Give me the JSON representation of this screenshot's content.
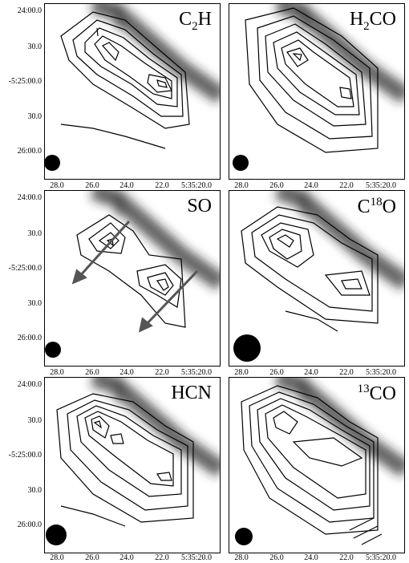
{
  "panels": [
    {
      "id": "c2h",
      "mol_main": "C",
      "mol_sub": "2",
      "mol_after": "H",
      "mol_sup": "",
      "mol_pre": "",
      "beam": "small"
    },
    {
      "id": "h2co",
      "mol_main": "H",
      "mol_sub": "2",
      "mol_after": "CO",
      "mol_sup": "",
      "mol_pre": "",
      "beam": "small"
    },
    {
      "id": "so",
      "mol_main": "SO",
      "mol_sub": "",
      "mol_after": "",
      "mol_sup": "",
      "mol_pre": "",
      "beam": "small"
    },
    {
      "id": "c18o",
      "mol_main": "C",
      "mol_sub": "",
      "mol_after": "O",
      "mol_sup": "18",
      "mol_pre": "",
      "beam": "large"
    },
    {
      "id": "hcn",
      "mol_main": "HCN",
      "mol_sub": "",
      "mol_after": "",
      "mol_sup": "",
      "mol_pre": "",
      "beam": "medium"
    },
    {
      "id": "13co",
      "mol_main": "CO",
      "mol_sub": "",
      "mol_after": "",
      "mol_sup": "",
      "mol_pre": "13",
      "beam": "small"
    }
  ],
  "y_ticks": [
    "24:00.0",
    "30.0",
    "-5:25:00.0",
    "30.0",
    "26:00.0"
  ],
  "x_ticks": [
    "28.0",
    "26.0",
    "24.0",
    "22.0",
    "5:35:20.0"
  ],
  "colors": {
    "contour": "#000000",
    "background": "#ffffff",
    "filament": "#1a1a1a",
    "arrow": "#555555"
  }
}
